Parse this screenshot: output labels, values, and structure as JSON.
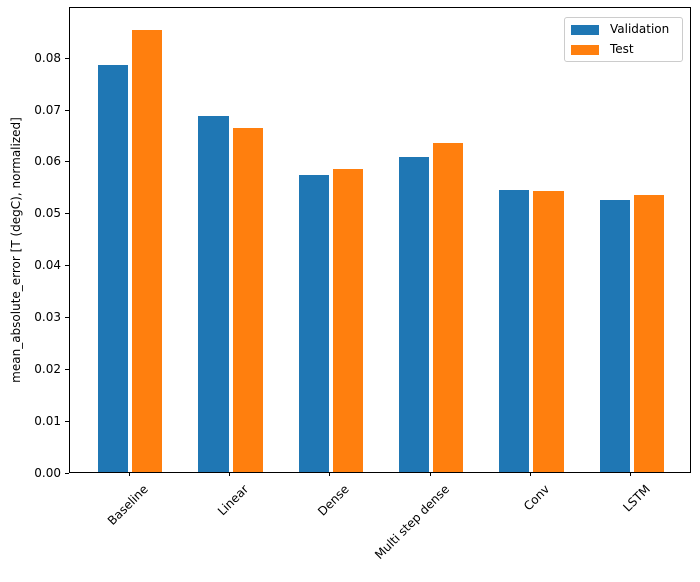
{
  "chart_data": {
    "type": "bar",
    "title": "",
    "categories": [
      "Baseline",
      "Linear",
      "Dense",
      "Multi step dense",
      "Conv",
      "LSTM"
    ],
    "series": [
      {
        "name": "Validation",
        "color": "#1f77b4",
        "values": [
          0.0785,
          0.0686,
          0.0573,
          0.0607,
          0.0545,
          0.0524
        ]
      },
      {
        "name": "Test",
        "color": "#ff7f0e",
        "values": [
          0.0852,
          0.0663,
          0.0584,
          0.0634,
          0.0543,
          0.0535
        ]
      }
    ],
    "xlabel": "",
    "ylabel": "mean_absolute_error [T (degC), normalized]",
    "ylim": [
      0,
      0.0899
    ],
    "xlim": [
      -0.6,
      5.6
    ],
    "yticks": [
      0.0,
      0.01,
      0.02,
      0.03,
      0.04,
      0.05,
      0.06,
      0.07,
      0.08
    ],
    "ytick_labels": [
      "0.00",
      "0.01",
      "0.02",
      "0.03",
      "0.04",
      "0.05",
      "0.06",
      "0.07",
      "0.08"
    ],
    "bar_width_units": 0.3,
    "bar_offset_units": 0.17,
    "xtick_rotation_deg": 45,
    "grid": false,
    "legend_position": "upper right",
    "background_color": "#ffffff",
    "axis_color": "#000000",
    "legend_border_color": "#cccccc"
  }
}
